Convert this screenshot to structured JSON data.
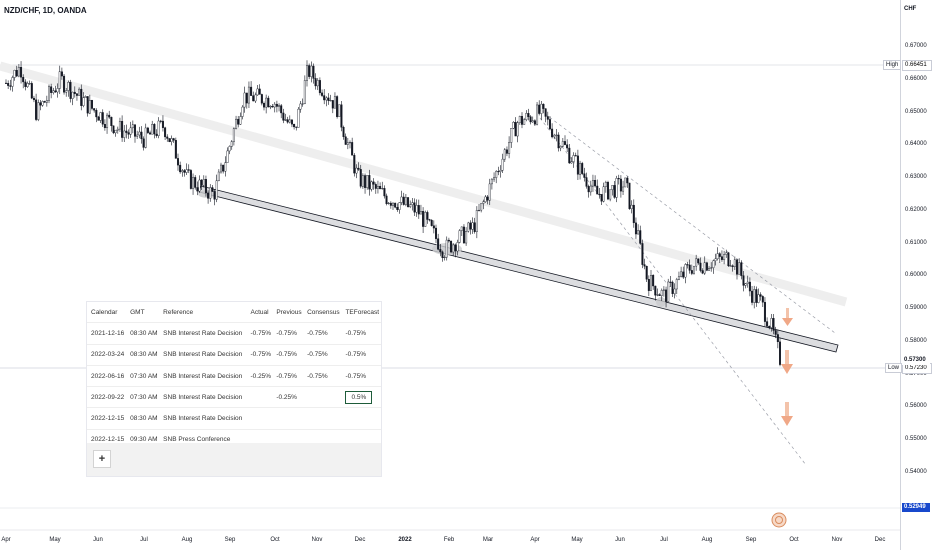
{
  "symbol_title": "NZD/CHF, 1D, OANDA",
  "currency": "CHF",
  "chart_data": {
    "type": "candlestick",
    "title": "NZD/CHF, 1D, OANDA",
    "ylabel": "CHF",
    "ylim": [
      0.525,
      0.688
    ],
    "y_ticks": [
      "0.67000",
      "0.66000",
      "0.65000",
      "0.64000",
      "0.63000",
      "0.62000",
      "0.61000",
      "0.60000",
      "0.59000",
      "0.58000",
      "0.57000",
      "0.56000",
      "0.55000",
      "0.54000"
    ],
    "x_ticks": [
      "Apr",
      "May",
      "Jun",
      "Jul",
      "Aug",
      "Sep",
      "Oct",
      "Nov",
      "Dec",
      "2022",
      "Feb",
      "Mar",
      "Apr",
      "May",
      "Jun",
      "Jul",
      "Aug",
      "Sep",
      "Oct",
      "Nov",
      "Dec"
    ],
    "close_path_anchors": [
      {
        "date": "2021-04-01",
        "close": 0.659
      },
      {
        "date": "2021-04-10",
        "close": 0.664
      },
      {
        "date": "2021-04-20",
        "close": 0.65
      },
      {
        "date": "2021-05-05",
        "close": 0.66
      },
      {
        "date": "2021-05-25",
        "close": 0.652
      },
      {
        "date": "2021-06-15",
        "close": 0.645
      },
      {
        "date": "2021-07-01",
        "close": 0.642
      },
      {
        "date": "2021-07-15",
        "close": 0.646
      },
      {
        "date": "2021-08-01",
        "close": 0.63
      },
      {
        "date": "2021-08-20",
        "close": 0.625
      },
      {
        "date": "2021-08-30",
        "close": 0.638
      },
      {
        "date": "2021-09-10",
        "close": 0.655
      },
      {
        "date": "2021-09-30",
        "close": 0.654
      },
      {
        "date": "2021-10-15",
        "close": 0.644
      },
      {
        "date": "2021-10-25",
        "close": 0.663
      },
      {
        "date": "2021-11-15",
        "close": 0.652
      },
      {
        "date": "2021-11-30",
        "close": 0.63
      },
      {
        "date": "2021-12-20",
        "close": 0.624
      },
      {
        "date": "2022-01-10",
        "close": 0.62
      },
      {
        "date": "2022-01-28",
        "close": 0.608
      },
      {
        "date": "2022-02-20",
        "close": 0.615
      },
      {
        "date": "2022-03-20",
        "close": 0.647
      },
      {
        "date": "2022-04-05",
        "close": 0.65
      },
      {
        "date": "2022-04-25",
        "close": 0.638
      },
      {
        "date": "2022-05-15",
        "close": 0.625
      },
      {
        "date": "2022-06-05",
        "close": 0.628
      },
      {
        "date": "2022-06-20",
        "close": 0.599
      },
      {
        "date": "2022-07-01",
        "close": 0.594
      },
      {
        "date": "2022-07-20",
        "close": 0.603
      },
      {
        "date": "2022-08-18",
        "close": 0.606
      },
      {
        "date": "2022-08-30",
        "close": 0.596
      },
      {
        "date": "2022-09-08",
        "close": 0.592
      },
      {
        "date": "2022-09-15",
        "close": 0.585
      },
      {
        "date": "2022-09-21",
        "close": 0.576
      },
      {
        "date": "2022-09-23",
        "close": 0.5723
      }
    ],
    "price_lines": {
      "high": 0.66451,
      "low": 0.5723,
      "current": 0.573,
      "bottom_tag": 0.52949
    },
    "trendlines": [
      {
        "name": "support-channel",
        "from": {
          "date": "2021-08-23",
          "price": 0.625
        },
        "to": {
          "date": "2022-10-10",
          "price": 0.579
        }
      },
      {
        "name": "upper-shaded",
        "from": {
          "date": "2021-04-01",
          "price": 0.665
        },
        "to": {
          "date": "2022-10-10",
          "price": 0.594
        }
      },
      {
        "name": "dashed-upper",
        "from": {
          "date": "2022-04-05",
          "price": 0.652
        },
        "to": {
          "date": "2022-10-10",
          "price": 0.583
        }
      },
      {
        "name": "dashed-lower",
        "from": {
          "date": "2022-04-05",
          "price": 0.648
        },
        "to": {
          "date": "2022-10-20",
          "price": 0.543
        }
      }
    ],
    "grid": false,
    "legend": "none"
  },
  "axis_labels": {
    "high_label": "High",
    "high_value": "0.66451",
    "low_label": "Low",
    "low_value": "0.57230",
    "current_value": "0.57300",
    "bottom_value": "0.52949"
  },
  "calendar": {
    "headers": [
      "Calendar",
      "GMT",
      "Reference",
      "Actual",
      "Previous",
      "Consensus",
      "TEForecast"
    ],
    "rows": [
      [
        "2021-12-16",
        "08:30 AM",
        "SNB Interest Rate Decision",
        "-0.75%",
        "-0.75%",
        "-0.75%",
        "-0.75%"
      ],
      [
        "2022-03-24",
        "08:30 AM",
        "SNB Interest Rate Decision",
        "-0.75%",
        "-0.75%",
        "-0.75%",
        "-0.75%"
      ],
      [
        "2022-06-16",
        "07:30 AM",
        "SNB Interest Rate Decision",
        "-0.25%",
        "-0.75%",
        "-0.75%",
        "-0.75%"
      ],
      [
        "2022-09-22",
        "07:30 AM",
        "SNB Interest Rate Decision",
        "",
        "-0.25%",
        "",
        "0.5%"
      ],
      [
        "2022-12-15",
        "08:30 AM",
        "SNB Interest Rate Decision",
        "",
        "",
        "",
        ""
      ],
      [
        "2022-12-15",
        "09:30 AM",
        "SNB Press Conference",
        "",
        "",
        "",
        ""
      ]
    ],
    "add_label": "+"
  },
  "colors": {
    "candle": "#131722",
    "trend": "#d0d2d7",
    "shade": "#eeeeee",
    "arrow": "#f0a887",
    "bg": "#ffffff",
    "forecast_border": "#1e5c3a"
  }
}
